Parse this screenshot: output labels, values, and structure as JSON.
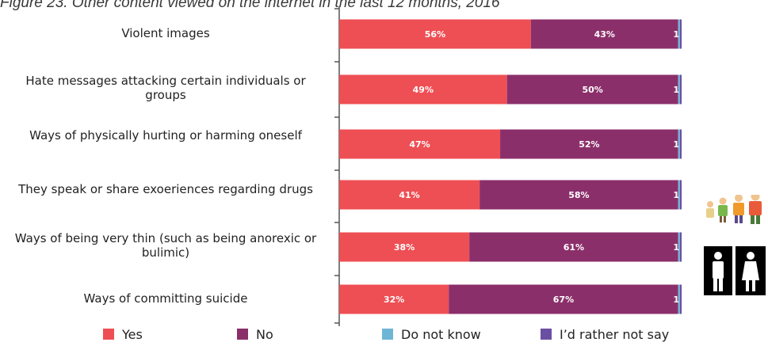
{
  "title": "Figure 23. Other content viewed on the internet in the last 12 months, 2016",
  "chart_data": {
    "type": "bar",
    "orientation": "horizontal",
    "stacked": true,
    "categories": [
      "Violent images",
      "Hate messages attacking certain individuals or groups",
      "Ways of physically hurting or harming oneself",
      "They speak or share exoeriences regarding drugs",
      "Ways of being very thin (such as being anorexic or bulimic)",
      "Ways of committing suicide"
    ],
    "series": [
      {
        "name": "Yes",
        "color": "#ee4f54",
        "values": [
          56,
          49,
          47,
          41,
          38,
          32
        ],
        "labels": [
          "56%",
          "49%",
          "47%",
          "41%",
          "38%",
          "32%"
        ]
      },
      {
        "name": "No",
        "color": "#8b2f6a",
        "values": [
          43,
          50,
          52,
          58,
          61,
          67
        ],
        "labels": [
          "43%",
          "50%",
          "52%",
          "58%",
          "61%",
          "67%"
        ]
      },
      {
        "name": "Do not know",
        "color": "#6fb5d6",
        "values": [
          0.5,
          0.5,
          0.5,
          0.5,
          0.5,
          0.5
        ],
        "labels": [
          "",
          "",
          "",
          "",
          "",
          ""
        ]
      },
      {
        "name": "I'd rather not say",
        "color": "#6a4fa3",
        "values": [
          0.5,
          0.5,
          0.5,
          0.5,
          0.5,
          0.5
        ],
        "labels": [
          "1",
          "1",
          "1",
          "1",
          "1",
          "1"
        ]
      }
    ],
    "xlim": [
      0,
      100
    ],
    "grid": false,
    "legend_position": "bottom"
  },
  "legend": [
    {
      "label": "Yes",
      "color": "#ee4f54"
    },
    {
      "label": "No",
      "color": "#8b2f6a"
    },
    {
      "label": "Do not know",
      "color": "#6fb5d6"
    },
    {
      "label": "I’d rather not say",
      "color": "#6a4fa3"
    }
  ]
}
